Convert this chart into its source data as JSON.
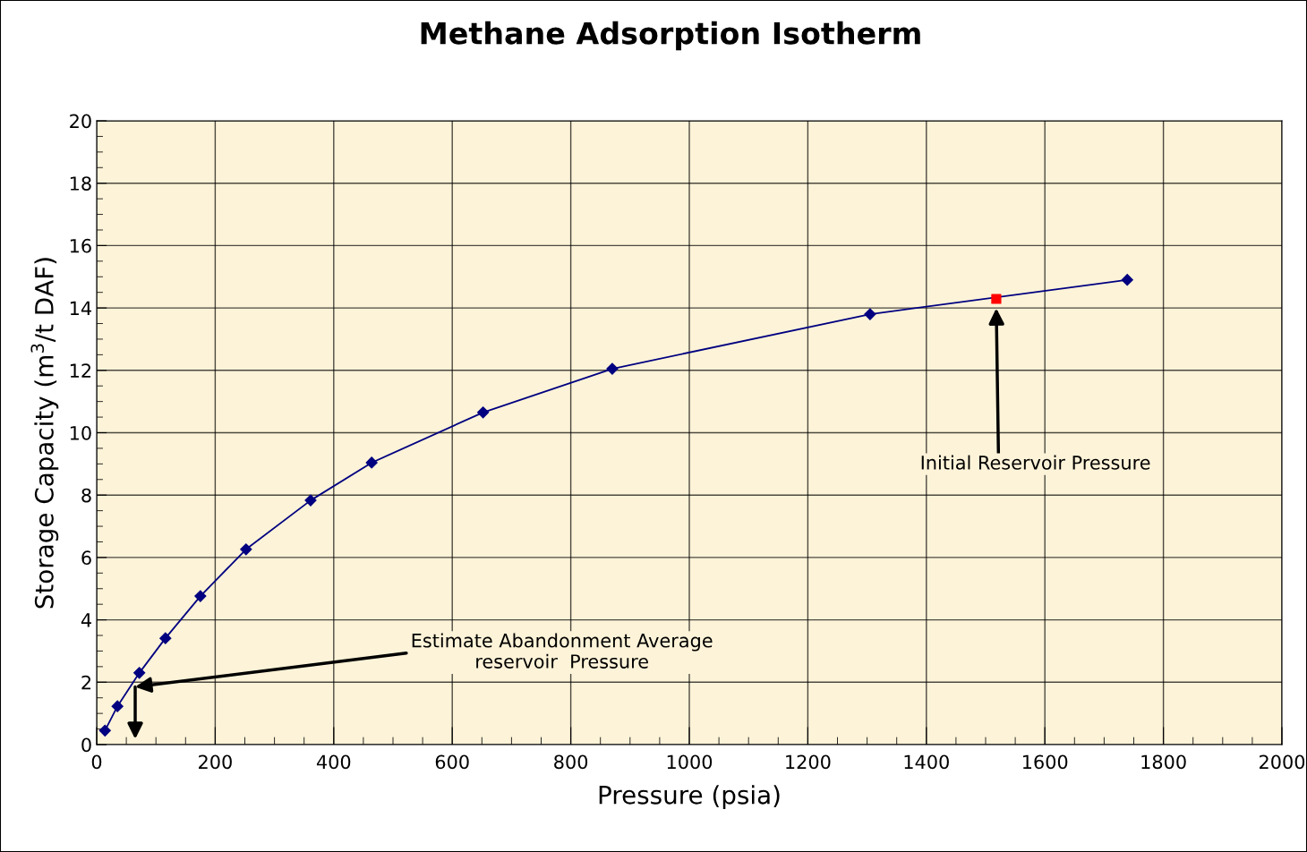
{
  "chart_data": {
    "type": "line",
    "title": "Methane Adsorption Isotherm",
    "xlabel": "Pressure (psia)",
    "ylabel": "Storage Capacity (m$^{3}$/t DAF)",
    "series": [
      {
        "color": "#000080",
        "marker": "diamond",
        "x": [
          14,
          35,
          72,
          116,
          175,
          252,
          361,
          464,
          652,
          870,
          1305,
          1739
        ],
        "values": [
          0.45,
          1.23,
          2.3,
          3.41,
          4.76,
          6.26,
          7.83,
          9.04,
          10.65,
          12.05,
          13.8,
          14.9
        ]
      },
      {
        "type": "scatter",
        "color": "#ff0000",
        "marker": "square",
        "x": [
          1518
        ],
        "values": [
          14.29
        ]
      }
    ],
    "xlim": [
      0,
      2000
    ],
    "xticks": [
      0,
      200,
      400,
      600,
      800,
      1000,
      1200,
      1400,
      1600,
      1800,
      2000
    ],
    "ylim": [
      0,
      20
    ],
    "yticks": [
      0,
      2,
      4,
      6,
      8,
      10,
      12,
      14,
      16,
      18,
      20
    ],
    "grid": true,
    "annotations": [
      "Initial Reservoir Pressure",
      {
        "text": "Estimate Abandonment Average\nreservoir  Pressure",
        "x": 65,
        "y": 1.85
      }
    ]
  }
}
